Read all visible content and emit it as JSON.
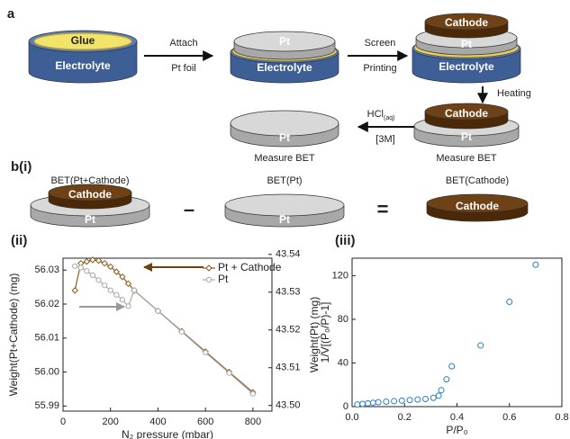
{
  "panel_a": {
    "label": "a",
    "step1": {
      "glue": "Glue",
      "electrolyte": "Electrolyte"
    },
    "arrow1": {
      "top": "Attach",
      "bottom": "Pt foil"
    },
    "step2": {
      "pt": "Pt",
      "electrolyte": "Electrolyte"
    },
    "arrow2": {
      "top": "Screen",
      "bottom": "Printing"
    },
    "step3": {
      "cathode": "Cathode",
      "pt": "Pt",
      "electrolyte": "Electrolyte"
    },
    "arrow3": {
      "text": "Heating"
    },
    "step4": {
      "cathode": "Cathode",
      "pt": "Pt",
      "caption": "Measure BET"
    },
    "arrow4": {
      "hcl": "HCl",
      "hcl_sub": "(aq)",
      "conc": "[3M]"
    },
    "step5": {
      "pt": "Pt",
      "caption": "Measure BET"
    }
  },
  "panel_b": {
    "label": "b(i)",
    "left": {
      "title": "BET(Pt+Cathode)",
      "cathode": "Cathode",
      "pt": "Pt"
    },
    "minus": "–",
    "middle": {
      "title": "BET(Pt)",
      "pt": "Pt"
    },
    "equals": "=",
    "right": {
      "title": "BET(Cathode)",
      "cathode": "Cathode"
    }
  },
  "chart_data": [
    {
      "type": "line",
      "panel_label": "(ii)",
      "x_label": "N₂ pressure (mbar)",
      "y_label": "Weight(Pt+Cathode) (mg)",
      "y2_label": "Weight(Pt) (mg)",
      "xlim": [
        0,
        880
      ],
      "xticks": [
        0,
        200,
        400,
        600,
        800
      ],
      "ylim": [
        55.9885,
        56.0335
      ],
      "yticks": [
        55.99,
        {
          "value": 56,
          "label": "56.00"
        },
        56.01,
        56.02,
        56.03
      ],
      "y2lim": [
        43.4985,
        43.539
      ],
      "y2ticks": [
        {
          "value": 43.5,
          "label": "43.50"
        },
        43.51,
        43.52,
        43.53,
        43.54
      ],
      "legend": "upper right",
      "series": [
        {
          "name": "Pt + Cathode",
          "color": "#8b5a1b",
          "marker": "diamond",
          "x": [
            50,
            75,
            100,
            125,
            150,
            175,
            200,
            225,
            250,
            275,
            300,
            400,
            500,
            600,
            700,
            800
          ],
          "values": [
            56.024,
            56.032,
            56.0325,
            56.033,
            56.0328,
            56.032,
            56.031,
            56.0295,
            56.028,
            56.026,
            56.024,
            56.018,
            56.012,
            56.006,
            56.0,
            55.994
          ]
        },
        {
          "name": "Pt",
          "color": "#a8a8a8",
          "marker": "circle",
          "axis": "y2",
          "x": [
            50,
            75,
            100,
            125,
            150,
            175,
            200,
            225,
            250,
            275,
            300,
            400,
            500,
            600,
            700,
            800
          ],
          "values": [
            43.5369,
            43.5365,
            43.5356,
            43.5345,
            43.5332,
            43.5318,
            43.5305,
            43.5293,
            43.528,
            43.5263,
            43.5305,
            43.525,
            43.5195,
            43.514,
            43.5086,
            43.5031
          ]
        }
      ]
    },
    {
      "type": "scatter",
      "panel_label": "(iii)",
      "x_label": "P/P₀",
      "y_label": "1/V[(P₀/P)-1]",
      "xlim": [
        0,
        0.8
      ],
      "xticks": [
        {
          "value": 0,
          "label": "0.0"
        },
        0.2,
        0.4,
        0.6,
        0.8
      ],
      "ylim": [
        0,
        136
      ],
      "yticks": [
        0,
        40,
        80,
        120
      ],
      "series": [
        {
          "color": "#2a7fc1",
          "marker": "circle",
          "x": [
            0.02,
            0.04,
            0.06,
            0.08,
            0.1,
            0.13,
            0.16,
            0.19,
            0.22,
            0.25,
            0.28,
            0.31,
            0.33,
            0.34,
            0.36,
            0.38,
            0.49,
            0.6,
            0.7
          ],
          "values": [
            2,
            2.5,
            3,
            3.5,
            4,
            4.5,
            5,
            5.5,
            6,
            6.5,
            7,
            8,
            10,
            15,
            25,
            37,
            56,
            96,
            130
          ]
        }
      ]
    }
  ]
}
